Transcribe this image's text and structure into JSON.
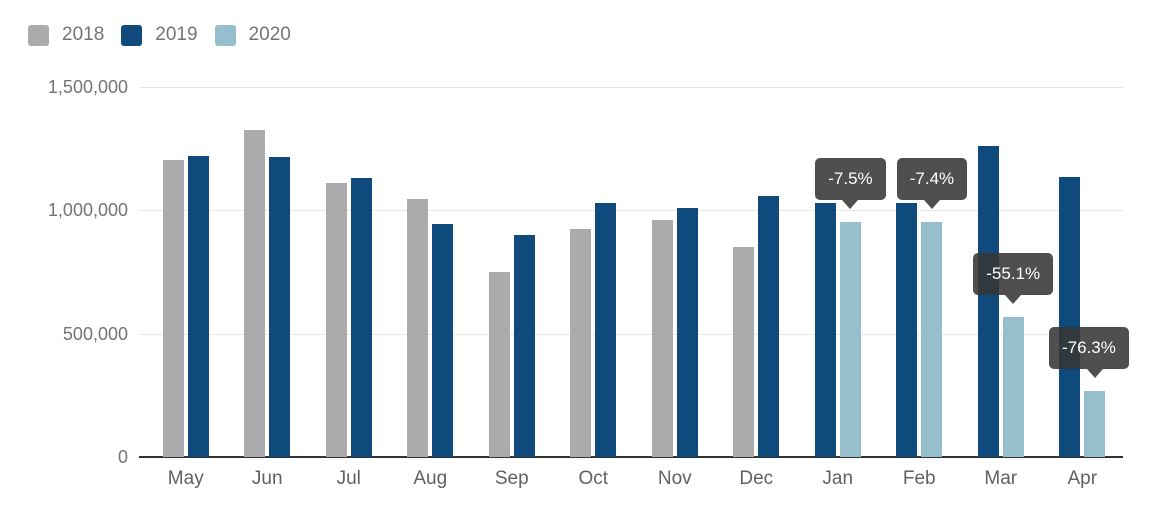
{
  "chart_data": {
    "type": "bar",
    "title": "",
    "xlabel": "",
    "ylabel": "",
    "categories": [
      "May",
      "Jun",
      "Jul",
      "Aug",
      "Sep",
      "Oct",
      "Nov",
      "Dec",
      "Jan",
      "Feb",
      "Mar",
      "Apr"
    ],
    "series": [
      {
        "name": "2018",
        "color": "#ababad",
        "values": [
          1205000,
          1325000,
          1110000,
          1045000,
          750000,
          925000,
          960000,
          850000,
          null,
          null,
          null,
          null
        ]
      },
      {
        "name": "2019",
        "color": "#0f4a7d",
        "values": [
          1220000,
          1215000,
          1130000,
          945000,
          900000,
          1030000,
          1010000,
          1060000,
          1030000,
          1030000,
          1260000,
          1135000
        ]
      },
      {
        "name": "2020",
        "color": "#96becd",
        "values": [
          null,
          null,
          null,
          null,
          null,
          null,
          null,
          null,
          953000,
          954000,
          566000,
          269000
        ]
      }
    ],
    "annotations": [
      {
        "category": "Jan",
        "series": "2020",
        "label": "-7.5%"
      },
      {
        "category": "Feb",
        "series": "2020",
        "label": "-7.4%"
      },
      {
        "category": "Mar",
        "series": "2020",
        "label": "-55.1%"
      },
      {
        "category": "Apr",
        "series": "2020",
        "label": "-76.3%"
      }
    ],
    "y_axis": {
      "ticks": [
        "0",
        "500,000",
        "1,000,000",
        "1,500,000"
      ],
      "tick_values": [
        0,
        500000,
        1000000,
        1500000
      ]
    },
    "ylim": [
      0,
      1500000
    ],
    "grid": true,
    "legend_position": "top-left"
  },
  "colors": {
    "background": "#ffffff",
    "gridline": "#e7e7e7",
    "baseline": "#333333",
    "y_label": "#757575",
    "x_label": "#616161",
    "series_2018": "#ababad",
    "series_2019": "#0f4a7d",
    "series_2020": "#96becd",
    "annotation_bg": "#3e3e3e",
    "annotation_text": "#ffffff"
  }
}
